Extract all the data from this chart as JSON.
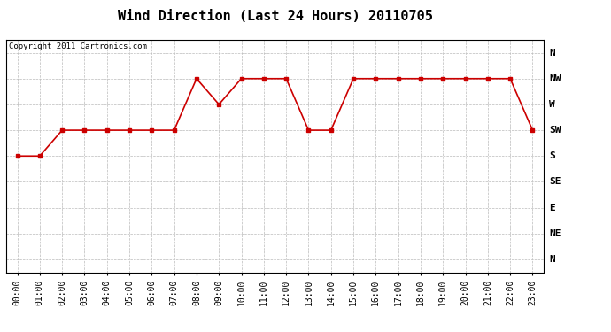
{
  "title": "Wind Direction (Last 24 Hours) 20110705",
  "copyright_text": "Copyright 2011 Cartronics.com",
  "hours": [
    0,
    1,
    2,
    3,
    4,
    5,
    6,
    7,
    8,
    9,
    10,
    11,
    12,
    13,
    14,
    15,
    16,
    17,
    18,
    19,
    20,
    21,
    22,
    23
  ],
  "hour_labels": [
    "00:00",
    "01:00",
    "02:00",
    "03:00",
    "04:00",
    "05:00",
    "06:00",
    "07:00",
    "08:00",
    "09:00",
    "10:00",
    "11:00",
    "12:00",
    "13:00",
    "14:00",
    "15:00",
    "16:00",
    "17:00",
    "18:00",
    "19:00",
    "20:00",
    "21:00",
    "22:00",
    "23:00"
  ],
  "wind_values": [
    4,
    4,
    5,
    5,
    5,
    5,
    5,
    5,
    7,
    6,
    7,
    7,
    7,
    5,
    5,
    7,
    7,
    7,
    7,
    7,
    7,
    7,
    7,
    5
  ],
  "ytick_positions": [
    8,
    7,
    6,
    5,
    4,
    3,
    2,
    1,
    0
  ],
  "ytick_labels": [
    "N",
    "NW",
    "W",
    "SW",
    "S",
    "SE",
    "E",
    "NE",
    "N"
  ],
  "ylim": [
    -0.5,
    8.5
  ],
  "xlim": [
    -0.5,
    23.5
  ],
  "line_color": "#cc0000",
  "marker": "s",
  "marker_size": 3,
  "grid_color": "#bbbbbb",
  "background_color": "#ffffff",
  "title_fontsize": 11,
  "tick_fontsize": 7,
  "copyright_fontsize": 6.5
}
